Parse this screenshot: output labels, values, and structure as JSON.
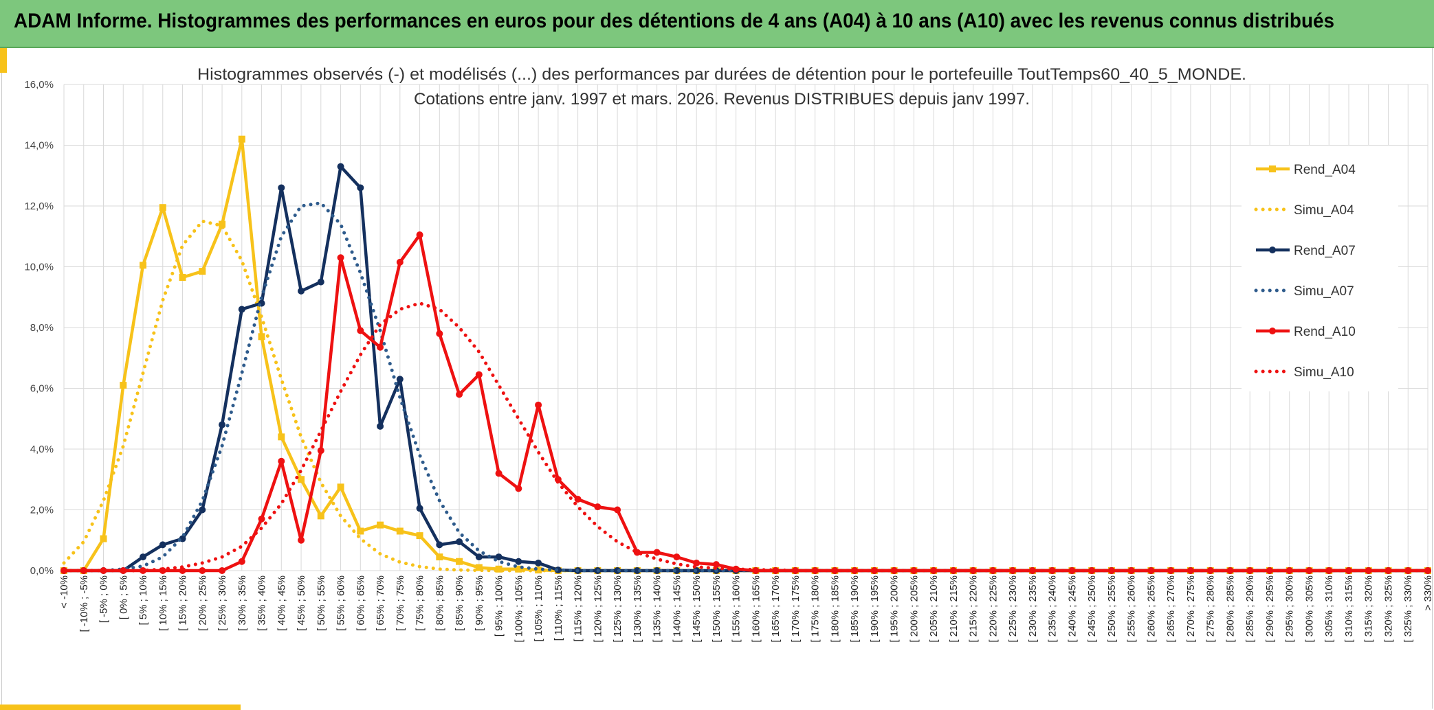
{
  "header": {
    "title": "ADAM Informe. Histogrammes des performances en euros pour des détentions de 4 ans (A04) à 10 ans (A10) avec les revenus connus distribués"
  },
  "chart_data": {
    "type": "line",
    "title_lines": [
      "Histogrammes observés (-) et modélisés (...) des performances par durées de détention pour le portefeuille ToutTemps60_40_5_MONDE.",
      "Cotations entre janv. 1997 et mars. 2026. Revenus DISTRIBUES depuis janv 1997."
    ],
    "xlabel": "",
    "ylabel": "",
    "ylim": [
      0,
      16
    ],
    "yticks": [
      "0,0%",
      "2,0%",
      "4,0%",
      "6,0%",
      "8,0%",
      "10,0%",
      "12,0%",
      "14,0%",
      "16,0%"
    ],
    "grid": true,
    "legend_position": "right",
    "categories": [
      "< -10%",
      "[ -10% ; -5%",
      "[ -5% ; 0%",
      "[ 0% ; 5%",
      "[ 5% ; 10%",
      "[ 10% ; 15%",
      "[ 15% ; 20%",
      "[ 20% ; 25%",
      "[ 25% ; 30%",
      "[ 30% ; 35%",
      "[ 35% ; 40%",
      "[ 40% ; 45%",
      "[ 45% ; 50%",
      "[ 50% ; 55%",
      "[ 55% ; 60%",
      "[ 60% ; 65%",
      "[ 65% ; 70%",
      "[ 70% ; 75%",
      "[ 75% ; 80%",
      "[ 80% ; 85%",
      "[ 85% ; 90%",
      "[ 90% ; 95%",
      "[ 95% ; 100%",
      "[ 100% ; 105%",
      "[ 105% ; 110%",
      "[ 110% ; 115%",
      "[ 115% ; 120%",
      "[ 120% ; 125%",
      "[ 125% ; 130%",
      "[ 130% ; 135%",
      "[ 135% ; 140%",
      "[ 140% ; 145%",
      "[ 145% ; 150%",
      "[ 150% ; 155%",
      "[ 155% ; 160%",
      "[ 160% ; 165%",
      "[ 165% ; 170%",
      "[ 170% ; 175%",
      "[ 175% ; 180%",
      "[ 180% ; 185%",
      "[ 185% ; 190%",
      "[ 190% ; 195%",
      "[ 195% ; 200%",
      "[ 200% ; 205%",
      "[ 205% ; 210%",
      "[ 210% ; 215%",
      "[ 215% ; 220%",
      "[ 220% ; 225%",
      "[ 225% ; 230%",
      "[ 230% ; 235%",
      "[ 235% ; 240%",
      "[ 240% ; 245%",
      "[ 245% ; 250%",
      "[ 250% ; 255%",
      "[ 255% ; 260%",
      "[ 260% ; 265%",
      "[ 265% ; 270%",
      "[ 270% ; 275%",
      "[ 275% ; 280%",
      "[ 280% ; 285%",
      "[ 285% ; 290%",
      "[ 290% ; 295%",
      "[ 295% ; 300%",
      "[ 300% ; 305%",
      "[ 305% ; 310%",
      "[ 310% ; 315%",
      "[ 315% ; 320%",
      "[ 320% ; 325%",
      "[ 325% ; 330%",
      "> 330%"
    ],
    "series": [
      {
        "name": "Rend_A04",
        "color": "#f7c21a",
        "style": "solid",
        "marker": "square",
        "values": [
          0,
          0,
          1.05,
          6.1,
          10.05,
          11.95,
          9.65,
          9.85,
          11.4,
          14.2,
          7.7,
          4.4,
          3.0,
          1.8,
          2.75,
          1.3,
          1.5,
          1.3,
          1.15,
          0.45,
          0.3,
          0.1,
          0.05,
          0.05,
          0.02,
          0,
          0,
          0,
          0,
          0,
          0,
          0,
          0,
          0,
          0,
          0,
          0,
          0,
          0,
          0,
          0,
          0,
          0,
          0,
          0,
          0,
          0,
          0,
          0,
          0,
          0,
          0,
          0,
          0,
          0,
          0,
          0,
          0,
          0,
          0,
          0,
          0,
          0,
          0,
          0,
          0,
          0,
          0,
          0,
          0
        ]
      },
      {
        "name": "Simu_A04",
        "color": "#f7c21a",
        "style": "dotted",
        "marker": "none",
        "values": [
          0.25,
          0.95,
          2.3,
          4.1,
          6.5,
          8.9,
          10.7,
          11.5,
          11.35,
          10.2,
          8.35,
          6.3,
          4.4,
          2.9,
          1.8,
          1.05,
          0.55,
          0.28,
          0.13,
          0.05,
          0.02,
          0.01,
          0,
          0,
          0,
          0,
          0,
          0,
          0,
          0,
          0,
          0,
          0,
          0,
          0,
          0,
          0,
          0,
          0,
          0,
          0,
          0,
          0,
          0,
          0,
          0,
          0,
          0,
          0,
          0,
          0,
          0,
          0,
          0,
          0,
          0,
          0,
          0,
          0,
          0,
          0,
          0,
          0,
          0,
          0,
          0,
          0,
          0,
          0,
          0
        ]
      },
      {
        "name": "Rend_A07",
        "color": "#14305e",
        "style": "solid",
        "marker": "circle",
        "values": [
          0,
          0,
          0,
          0,
          0.45,
          0.85,
          1.05,
          2.0,
          4.8,
          8.6,
          8.8,
          12.6,
          9.2,
          9.5,
          13.3,
          12.6,
          4.75,
          6.3,
          2.05,
          0.85,
          0.95,
          0.45,
          0.45,
          0.3,
          0.25,
          0.02,
          0,
          0,
          0,
          0,
          0,
          0,
          0,
          0,
          0,
          0,
          0,
          0,
          0,
          0,
          0,
          0,
          0,
          0,
          0,
          0,
          0,
          0,
          0,
          0,
          0,
          0,
          0,
          0,
          0,
          0,
          0,
          0,
          0,
          0,
          0,
          0,
          0,
          0,
          0,
          0,
          0,
          0,
          0,
          0
        ]
      },
      {
        "name": "Simu_A07",
        "color": "#2e5b8c",
        "style": "dotted",
        "marker": "none",
        "values": [
          0,
          0,
          0,
          0.05,
          0.15,
          0.45,
          1.1,
          2.3,
          4.1,
          6.5,
          9.0,
          11.0,
          12.0,
          12.1,
          11.4,
          9.8,
          7.9,
          5.7,
          3.8,
          2.3,
          1.25,
          0.65,
          0.3,
          0.12,
          0.05,
          0.02,
          0,
          0,
          0,
          0,
          0,
          0,
          0,
          0,
          0,
          0,
          0,
          0,
          0,
          0,
          0,
          0,
          0,
          0,
          0,
          0,
          0,
          0,
          0,
          0,
          0,
          0,
          0,
          0,
          0,
          0,
          0,
          0,
          0,
          0,
          0,
          0,
          0,
          0,
          0,
          0,
          0,
          0,
          0,
          0
        ]
      },
      {
        "name": "Rend_A10",
        "color": "#ee1111",
        "style": "solid",
        "marker": "circle",
        "values": [
          0,
          0,
          0,
          0,
          0,
          0,
          0,
          0,
          0,
          0.3,
          1.7,
          3.6,
          1.0,
          3.95,
          10.3,
          7.9,
          7.35,
          10.15,
          11.05,
          7.8,
          5.8,
          6.45,
          3.2,
          2.7,
          5.45,
          3.0,
          2.35,
          2.1,
          2.0,
          0.6,
          0.6,
          0.45,
          0.25,
          0.2,
          0.05,
          0,
          0,
          0,
          0,
          0,
          0,
          0,
          0,
          0,
          0,
          0,
          0,
          0,
          0,
          0,
          0,
          0,
          0,
          0,
          0,
          0,
          0,
          0,
          0,
          0,
          0,
          0,
          0,
          0,
          0,
          0,
          0,
          0,
          0,
          0
        ]
      },
      {
        "name": "Simu_A10",
        "color": "#ee1111",
        "style": "dotted",
        "marker": "none",
        "values": [
          0,
          0,
          0,
          0,
          0,
          0.05,
          0.12,
          0.25,
          0.45,
          0.8,
          1.4,
          2.2,
          3.3,
          4.6,
          5.9,
          7.1,
          8.1,
          8.6,
          8.8,
          8.6,
          8.0,
          7.2,
          6.1,
          5.0,
          3.9,
          2.9,
          2.1,
          1.45,
          0.95,
          0.6,
          0.38,
          0.22,
          0.12,
          0.08,
          0.05,
          0.03,
          0.02,
          0,
          0,
          0,
          0,
          0,
          0,
          0,
          0,
          0,
          0,
          0,
          0,
          0,
          0,
          0,
          0,
          0,
          0,
          0,
          0,
          0,
          0,
          0,
          0,
          0,
          0,
          0,
          0,
          0,
          0,
          0,
          0,
          0
        ]
      }
    ]
  }
}
